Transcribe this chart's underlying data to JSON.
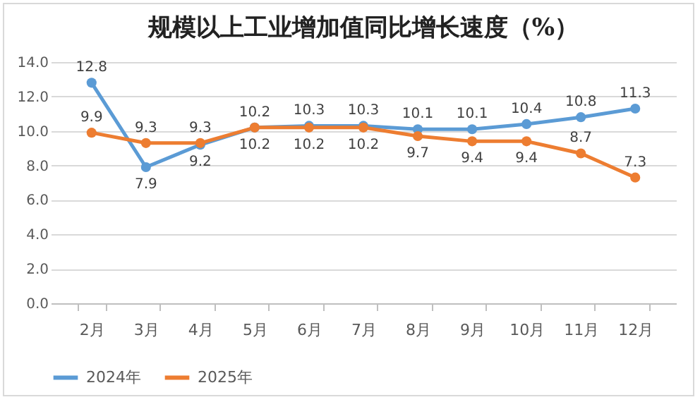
{
  "chart_data": {
    "type": "line",
    "title": "规模以上工业增加值同比增长速度（%）",
    "categories": [
      "2月",
      "3月",
      "4月",
      "5月",
      "6月",
      "7月",
      "8月",
      "9月",
      "10月",
      "11月",
      "12月"
    ],
    "series": [
      {
        "name": "2024年",
        "color": "#5b9bd5",
        "values": [
          12.8,
          7.9,
          9.2,
          10.2,
          10.3,
          10.3,
          10.1,
          10.1,
          10.4,
          10.8,
          11.3
        ]
      },
      {
        "name": "2025年",
        "color": "#ed7d31",
        "values": [
          9.9,
          9.3,
          9.3,
          10.2,
          10.2,
          10.2,
          9.7,
          9.4,
          9.4,
          8.7,
          7.3
        ]
      }
    ],
    "ylim": [
      0,
      14
    ],
    "yticks": [
      {
        "value": 0,
        "label": "0.0"
      },
      {
        "value": 2,
        "label": "2.0"
      },
      {
        "value": 4,
        "label": "4.0"
      },
      {
        "value": 6,
        "label": "6.0"
      },
      {
        "value": 8,
        "label": "8.0"
      },
      {
        "value": 10,
        "label": "10.0"
      },
      {
        "value": 12,
        "label": "12.0"
      },
      {
        "value": 14,
        "label": "14.0"
      }
    ],
    "grid": "y",
    "legend": "bottom",
    "marker": "circle",
    "line_style": "solid",
    "data_labels": true
  }
}
